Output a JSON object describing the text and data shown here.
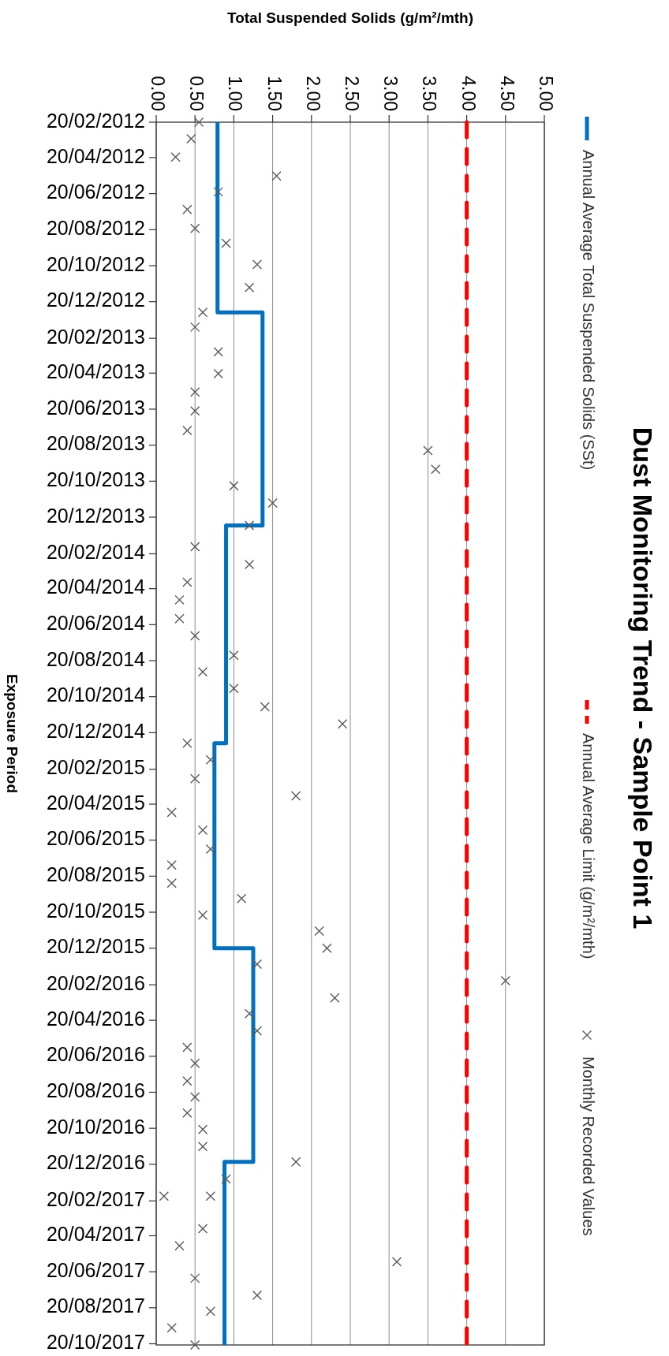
{
  "chart_data": {
    "type": "scatter",
    "orientation": "horizontal",
    "title": "Dust Monitoring Trend - Sample Point 1",
    "ylabel": "Exposure Period",
    "xlabel": "Total Suspended Solids (g/m²/mth)",
    "ylim": [
      "2017-10-22",
      "2012-02-20"
    ],
    "yticks": [
      {
        "value": "2012-02-20",
        "label": "20/02/2012"
      },
      {
        "value": "2012-04-20",
        "label": "20/04/2012"
      },
      {
        "value": "2012-06-20",
        "label": "20/06/2012"
      },
      {
        "value": "2012-08-20",
        "label": "20/08/2012"
      },
      {
        "value": "2012-10-20",
        "label": "20/10/2012"
      },
      {
        "value": "2012-12-20",
        "label": "20/12/2012"
      },
      {
        "value": "2013-02-20",
        "label": "20/02/2013"
      },
      {
        "value": "2013-04-20",
        "label": "20/04/2013"
      },
      {
        "value": "2013-06-20",
        "label": "20/06/2013"
      },
      {
        "value": "2013-08-20",
        "label": "20/08/2013"
      },
      {
        "value": "2013-10-20",
        "label": "20/10/2013"
      },
      {
        "value": "2013-12-20",
        "label": "20/12/2013"
      },
      {
        "value": "2014-02-20",
        "label": "20/02/2014"
      },
      {
        "value": "2014-04-20",
        "label": "20/04/2014"
      },
      {
        "value": "2014-06-20",
        "label": "20/06/2014"
      },
      {
        "value": "2014-08-20",
        "label": "20/08/2014"
      },
      {
        "value": "2014-10-20",
        "label": "20/10/2014"
      },
      {
        "value": "2014-12-20",
        "label": "20/12/2014"
      },
      {
        "value": "2015-02-20",
        "label": "20/02/2015"
      },
      {
        "value": "2015-04-20",
        "label": "20/04/2015"
      },
      {
        "value": "2015-06-20",
        "label": "20/06/2015"
      },
      {
        "value": "2015-08-20",
        "label": "20/08/2015"
      },
      {
        "value": "2015-10-20",
        "label": "20/10/2015"
      },
      {
        "value": "2015-12-20",
        "label": "20/12/2015"
      },
      {
        "value": "2016-02-20",
        "label": "20/02/2016"
      },
      {
        "value": "2016-04-20",
        "label": "20/04/2016"
      },
      {
        "value": "2016-06-20",
        "label": "20/06/2016"
      },
      {
        "value": "2016-08-20",
        "label": "20/08/2016"
      },
      {
        "value": "2016-10-20",
        "label": "20/10/2016"
      },
      {
        "value": "2016-12-20",
        "label": "20/12/2016"
      },
      {
        "value": "2017-02-20",
        "label": "20/02/2017"
      },
      {
        "value": "2017-04-20",
        "label": "20/04/2017"
      },
      {
        "value": "2017-06-20",
        "label": "20/06/2017"
      },
      {
        "value": "2017-08-20",
        "label": "20/08/2017"
      },
      {
        "value": "2017-10-20",
        "label": "20/10/2017"
      }
    ],
    "xlim": [
      0,
      5
    ],
    "xticks": [
      {
        "value": 0,
        "label": "0.00"
      },
      {
        "value": 0.5,
        "label": "0.50"
      },
      {
        "value": 1,
        "label": "1.00"
      },
      {
        "value": 1.5,
        "label": "1.50"
      },
      {
        "value": 2,
        "label": "2.00"
      },
      {
        "value": 2.5,
        "label": "2.50"
      },
      {
        "value": 3,
        "label": "3.00"
      },
      {
        "value": 3.5,
        "label": "3.50"
      },
      {
        "value": 4,
        "label": "4.00"
      },
      {
        "value": 4.5,
        "label": "4.50"
      },
      {
        "value": 5,
        "label": "5.00"
      }
    ],
    "grid": "x",
    "legend": "right",
    "series": [
      {
        "type": "step",
        "name": "Annual Average Total Suspended Solids (SSt)",
        "color": "#0070c0",
        "x": [
          "2012-02-20",
          "2013-01-07",
          "2014-01-03",
          "2015-01-07",
          "2015-12-20",
          "2016-12-16",
          "2017-10-22"
        ],
        "values": [
          0.79,
          1.37,
          0.9,
          0.75,
          1.25,
          0.88,
          0.88
        ]
      },
      {
        "type": "line",
        "name": "Annual Average Limit (g/m²/mth)",
        "color": "#ff0000",
        "line_style": "dashed",
        "x": [
          "2012-02-20",
          "2017-10-22"
        ],
        "values": [
          4,
          4
        ]
      },
      {
        "name": "Monthly Recorded Values",
        "color": "#595959",
        "marker": "cross",
        "x": [
          "2012-02-20",
          "2012-03-19",
          "2012-04-19",
          "2012-05-21",
          "2012-06-17",
          "2012-07-17",
          "2012-08-18",
          "2012-09-12",
          "2012-10-18",
          "2012-11-26",
          "2013-01-07",
          "2013-02-01",
          "2013-03-15",
          "2013-04-21",
          "2013-05-22",
          "2013-06-23",
          "2013-07-26",
          "2013-08-29",
          "2013-09-30",
          "2013-10-28",
          "2013-11-26",
          "2014-01-03",
          "2014-02-08",
          "2014-03-10",
          "2014-04-09",
          "2014-05-09",
          "2014-06-10",
          "2014-07-09",
          "2014-08-11",
          "2014-09-08",
          "2014-10-06",
          "2014-11-06",
          "2014-12-05",
          "2015-01-07",
          "2015-02-04",
          "2015-03-08",
          "2015-04-06",
          "2015-05-04",
          "2015-06-03",
          "2015-07-05",
          "2015-08-01",
          "2015-09-01",
          "2015-09-27",
          "2015-10-25",
          "2015-11-21",
          "2015-12-20",
          "2016-01-16",
          "2016-02-13",
          "2016-03-13",
          "2016-04-09",
          "2016-05-08",
          "2016-06-05",
          "2016-07-02",
          "2016-08-01",
          "2016-08-28",
          "2016-09-24",
          "2016-10-22",
          "2016-11-20",
          "2016-12-16",
          "2017-01-14",
          "2017-02-12",
          "2017-02-12",
          "2017-04-08",
          "2017-05-07",
          "2017-06-03",
          "2017-07-01",
          "2017-07-30",
          "2017-08-26",
          "2017-09-23",
          "2017-10-22"
        ],
        "values": [
          0.55,
          0.45,
          0.25,
          1.55,
          0.8,
          0.4,
          0.5,
          0.9,
          1.3,
          1.2,
          0.6,
          0.5,
          0.8,
          0.8,
          0.5,
          0.5,
          0.4,
          3.5,
          3.6,
          1.0,
          1.5,
          1.2,
          0.5,
          1.2,
          0.4,
          0.3,
          0.3,
          0.5,
          1.0,
          0.6,
          1.0,
          1.4,
          2.4,
          0.4,
          0.7,
          0.5,
          1.8,
          0.2,
          0.6,
          0.7,
          0.2,
          0.2,
          1.1,
          0.6,
          2.1,
          2.2,
          1.3,
          4.5,
          2.3,
          1.2,
          1.3,
          0.4,
          0.5,
          0.4,
          0.5,
          0.4,
          0.6,
          0.6,
          1.8,
          0.9,
          0.1,
          0.7,
          0.6,
          0.3,
          3.1,
          0.5,
          1.3,
          0.7,
          0.2,
          0.5
        ]
      }
    ]
  }
}
